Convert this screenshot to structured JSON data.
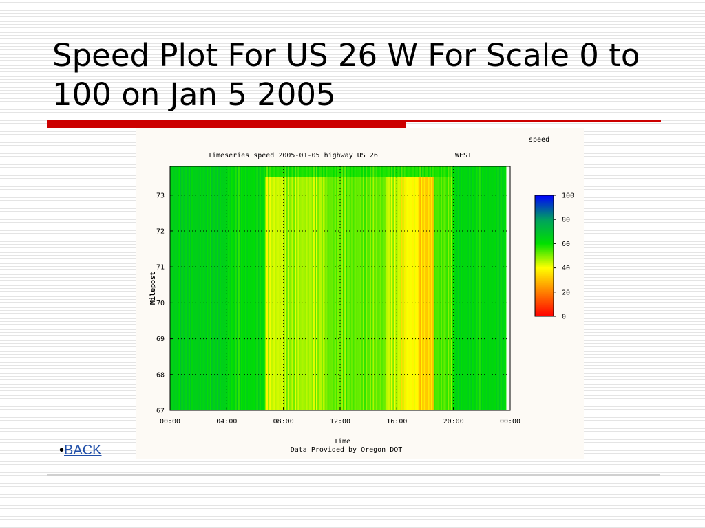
{
  "slide": {
    "title": "Speed Plot For US 26 W For Scale 0 to 100 on Jan 5 2005",
    "bullet_marker": "•",
    "back_label": "BACK"
  },
  "colors": {
    "accent_red": "#cc0000",
    "link": "#1f4ea8"
  },
  "chart_data": {
    "type": "heatmap",
    "title": "Timeseries speed 2005-01-05 highway US 26",
    "direction": "WEST",
    "xlabel": "Time",
    "ylabel": "Milepost",
    "source_note": "Data Provided by Oregon DOT",
    "x_ticks": [
      "00:00",
      "04:00",
      "08:00",
      "12:00",
      "16:00",
      "20:00",
      "00:00"
    ],
    "x_range_hours": [
      0,
      24
    ],
    "y_ticks": [
      "67",
      "68",
      "69",
      "70",
      "71",
      "72",
      "73"
    ],
    "y_range": [
      67,
      73.8
    ],
    "colorbar": {
      "label": "speed",
      "ticks": [
        "0",
        "20",
        "40",
        "60",
        "80",
        "100"
      ],
      "range": [
        0,
        100
      ]
    },
    "grid": true,
    "speed_profile": [
      {
        "from": 0,
        "to": 4.0,
        "speed": 65
      },
      {
        "from": 4.0,
        "to": 6.7,
        "speed": 62
      },
      {
        "from": 6.7,
        "to": 8.0,
        "speed": 44
      },
      {
        "from": 8.0,
        "to": 11.0,
        "speed": 47
      },
      {
        "from": 11.0,
        "to": 15.2,
        "speed": 52
      },
      {
        "from": 15.2,
        "to": 16.2,
        "speed": 45
      },
      {
        "from": 16.2,
        "to": 17.5,
        "speed": 40
      },
      {
        "from": 17.5,
        "to": 18.6,
        "speed": 33
      },
      {
        "from": 18.6,
        "to": 20.0,
        "speed": 54
      },
      {
        "from": 20.0,
        "to": 23.7,
        "speed": 63
      }
    ]
  }
}
